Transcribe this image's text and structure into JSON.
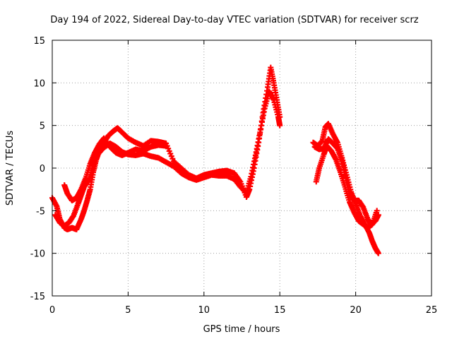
{
  "chart_data": {
    "type": "scatter",
    "title": "Day 194 of 2022, Sidereal Day-to-day VTEC variation (SDTVAR) for receiver scrz",
    "xlabel": "GPS time / hours",
    "ylabel": "SDTVAR / TECUs",
    "xlim": [
      0,
      25
    ],
    "ylim": [
      -15,
      15
    ],
    "xticks": [
      0,
      5,
      10,
      15,
      20,
      25
    ],
    "yticks": [
      -15,
      -10,
      -5,
      0,
      5,
      10,
      15
    ],
    "grid": true,
    "marker": "+",
    "series": [
      {
        "name": "arc-1",
        "color": "#ff0000",
        "points": [
          [
            0.0,
            -3.5
          ],
          [
            0.3,
            -4.5
          ],
          [
            0.5,
            -6.0
          ],
          [
            0.8,
            -7.0
          ],
          [
            1.0,
            -7.2
          ],
          [
            1.3,
            -7.0
          ],
          [
            1.6,
            -7.2
          ],
          [
            1.9,
            -6.0
          ],
          [
            2.1,
            -5.0
          ],
          [
            2.3,
            -3.8
          ],
          [
            2.5,
            -2.5
          ],
          [
            2.7,
            -0.5
          ],
          [
            2.9,
            1.0
          ],
          [
            3.1,
            2.0
          ],
          [
            3.4,
            3.0
          ],
          [
            3.7,
            3.8
          ],
          [
            4.0,
            4.3
          ],
          [
            4.3,
            4.7
          ],
          [
            4.6,
            4.2
          ],
          [
            5.0,
            3.5
          ],
          [
            5.5,
            3.0
          ],
          [
            6.0,
            2.6
          ],
          [
            6.5,
            3.2
          ],
          [
            7.0,
            3.1
          ],
          [
            7.5,
            2.9
          ],
          [
            8.0,
            0.8
          ],
          [
            8.5,
            0.0
          ],
          [
            9.0,
            -0.8
          ],
          [
            9.5,
            -1.2
          ],
          [
            10.0,
            -0.8
          ],
          [
            10.5,
            -0.6
          ],
          [
            11.0,
            -0.4
          ],
          [
            11.5,
            -0.3
          ],
          [
            12.0,
            -0.6
          ],
          [
            12.4,
            -1.6
          ],
          [
            12.8,
            -3.4
          ],
          [
            13.0,
            -2.5
          ],
          [
            13.3,
            0.0
          ],
          [
            13.6,
            3.0
          ],
          [
            13.9,
            6.5
          ],
          [
            14.2,
            9.5
          ],
          [
            14.4,
            11.8
          ],
          [
            14.6,
            10.0
          ],
          [
            14.8,
            8.0
          ],
          [
            15.0,
            6.0
          ]
        ]
      },
      {
        "name": "arc-2",
        "color": "#ff0000",
        "points": [
          [
            0.2,
            -5.5
          ],
          [
            0.5,
            -6.4
          ],
          [
            0.8,
            -6.8
          ],
          [
            1.1,
            -6.4
          ],
          [
            1.4,
            -5.6
          ],
          [
            1.7,
            -4.2
          ],
          [
            1.9,
            -3.2
          ],
          [
            2.1,
            -2.2
          ],
          [
            2.4,
            -1.4
          ],
          [
            2.7,
            0.2
          ],
          [
            3.0,
            1.6
          ],
          [
            3.4,
            2.4
          ],
          [
            3.8,
            2.9
          ],
          [
            4.2,
            2.5
          ],
          [
            4.6,
            1.9
          ],
          [
            5.0,
            1.6
          ],
          [
            5.5,
            1.5
          ],
          [
            6.0,
            1.7
          ],
          [
            6.5,
            1.4
          ],
          [
            7.0,
            1.2
          ],
          [
            7.5,
            0.7
          ],
          [
            8.0,
            0.2
          ],
          [
            8.5,
            -0.6
          ],
          [
            9.0,
            -1.1
          ],
          [
            9.5,
            -1.4
          ],
          [
            10.0,
            -1.1
          ],
          [
            10.5,
            -0.8
          ],
          [
            11.0,
            -0.9
          ],
          [
            11.5,
            -0.9
          ],
          [
            12.0,
            -1.3
          ],
          [
            12.4,
            -2.2
          ],
          [
            12.8,
            -2.9
          ],
          [
            13.1,
            -1.0
          ],
          [
            13.4,
            1.5
          ],
          [
            13.7,
            4.2
          ],
          [
            14.0,
            7.0
          ],
          [
            14.3,
            9.0
          ],
          [
            14.6,
            8.0
          ],
          [
            14.9,
            6.0
          ],
          [
            15.0,
            5.0
          ]
        ]
      },
      {
        "name": "arc-3",
        "color": "#ff0000",
        "points": [
          [
            0.8,
            -2.0
          ],
          [
            1.0,
            -3.0
          ],
          [
            1.3,
            -3.8
          ],
          [
            1.6,
            -3.5
          ],
          [
            1.9,
            -2.5
          ],
          [
            2.2,
            -1.2
          ],
          [
            2.5,
            0.5
          ],
          [
            2.8,
            1.8
          ],
          [
            3.1,
            2.8
          ],
          [
            3.4,
            3.5
          ],
          [
            3.8,
            2.5
          ],
          [
            4.2,
            1.8
          ],
          [
            4.6,
            1.5
          ],
          [
            5.0,
            1.8
          ],
          [
            5.5,
            2.2
          ],
          [
            6.0,
            2.0
          ],
          [
            6.5,
            2.5
          ],
          [
            7.0,
            2.7
          ],
          [
            7.5,
            2.6
          ]
        ]
      },
      {
        "name": "arc-4",
        "color": "#ff0000",
        "points": [
          [
            17.2,
            3.0
          ],
          [
            17.5,
            2.6
          ],
          [
            17.8,
            3.2
          ],
          [
            18.0,
            4.8
          ],
          [
            18.2,
            5.2
          ],
          [
            18.5,
            4.0
          ],
          [
            18.8,
            3.0
          ],
          [
            19.1,
            1.2
          ],
          [
            19.4,
            -0.8
          ],
          [
            19.7,
            -2.8
          ],
          [
            20.0,
            -4.2
          ],
          [
            20.3,
            -5.6
          ],
          [
            20.6,
            -6.6
          ],
          [
            20.9,
            -7.6
          ],
          [
            21.1,
            -8.6
          ],
          [
            21.3,
            -9.4
          ],
          [
            21.5,
            -10.0
          ]
        ]
      },
      {
        "name": "arc-5",
        "color": "#ff0000",
        "points": [
          [
            17.4,
            -1.6
          ],
          [
            17.6,
            0.0
          ],
          [
            17.9,
            1.6
          ],
          [
            18.1,
            2.6
          ],
          [
            18.4,
            2.0
          ],
          [
            18.7,
            1.0
          ],
          [
            19.0,
            -0.5
          ],
          [
            19.3,
            -2.2
          ],
          [
            19.6,
            -4.0
          ],
          [
            19.9,
            -5.2
          ],
          [
            20.2,
            -6.2
          ],
          [
            20.5,
            -6.6
          ],
          [
            20.8,
            -7.0
          ],
          [
            21.1,
            -6.6
          ],
          [
            21.4,
            -5.0
          ]
        ]
      },
      {
        "name": "arc-6",
        "color": "#ff0000",
        "points": [
          [
            17.3,
            2.5
          ],
          [
            17.6,
            2.2
          ],
          [
            17.9,
            2.3
          ],
          [
            18.2,
            3.4
          ],
          [
            18.5,
            2.9
          ],
          [
            18.8,
            2.3
          ],
          [
            19.1,
            0.8
          ],
          [
            19.4,
            -1.5
          ],
          [
            19.6,
            -3.2
          ],
          [
            19.9,
            -3.8
          ],
          [
            20.2,
            -3.8
          ],
          [
            20.5,
            -4.6
          ],
          [
            20.8,
            -6.0
          ],
          [
            21.0,
            -6.6
          ],
          [
            21.3,
            -6.2
          ],
          [
            21.5,
            -5.5
          ]
        ]
      }
    ]
  }
}
